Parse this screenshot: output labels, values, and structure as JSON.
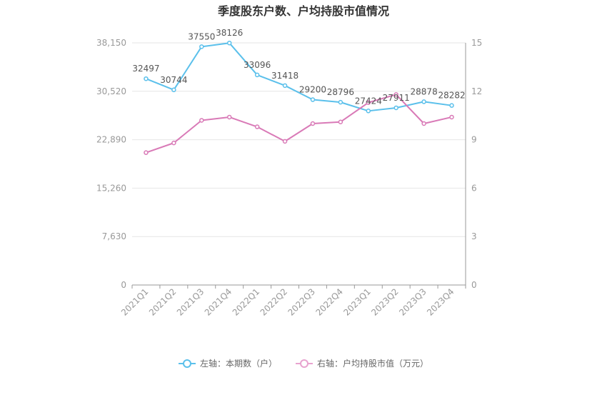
{
  "chart_data": {
    "type": "line",
    "title": "季度股东户数、户均持股市值情况",
    "categories": [
      "2021Q1",
      "2021Q2",
      "2021Q3",
      "2021Q4",
      "2022Q1",
      "2022Q2",
      "2022Q3",
      "2022Q4",
      "2023Q1",
      "2023Q2",
      "2023Q3",
      "2023Q4"
    ],
    "left_axis": {
      "ticks": [
        "0",
        "7,630",
        "15,260",
        "22,890",
        "30,520",
        "38,150"
      ],
      "range": [
        0,
        38150
      ]
    },
    "right_axis": {
      "ticks": [
        "0",
        "3",
        "6",
        "9",
        "12",
        "15"
      ],
      "range": [
        0,
        15
      ]
    },
    "series": [
      {
        "name": "左轴：本期数（户）",
        "axis": "left",
        "color": "#5bc0eb",
        "values": [
          32497,
          30744,
          37550,
          38126,
          33096,
          31418,
          29200,
          28796,
          27424,
          27911,
          28878,
          28282
        ],
        "labels": [
          "32497",
          "30744",
          "37550",
          "38126",
          "33096",
          "31418",
          "29200",
          "28796",
          "27424",
          "27911",
          "28878",
          "28282"
        ]
      },
      {
        "name": "右轴：户均持股市值（万元）",
        "axis": "right",
        "color": "#d97ab7",
        "values": [
          8.2,
          8.8,
          10.2,
          10.4,
          9.8,
          8.9,
          10.0,
          10.1,
          11.3,
          11.8,
          10.0,
          10.4
        ]
      }
    ],
    "grid": true,
    "legend_position": "bottom"
  }
}
